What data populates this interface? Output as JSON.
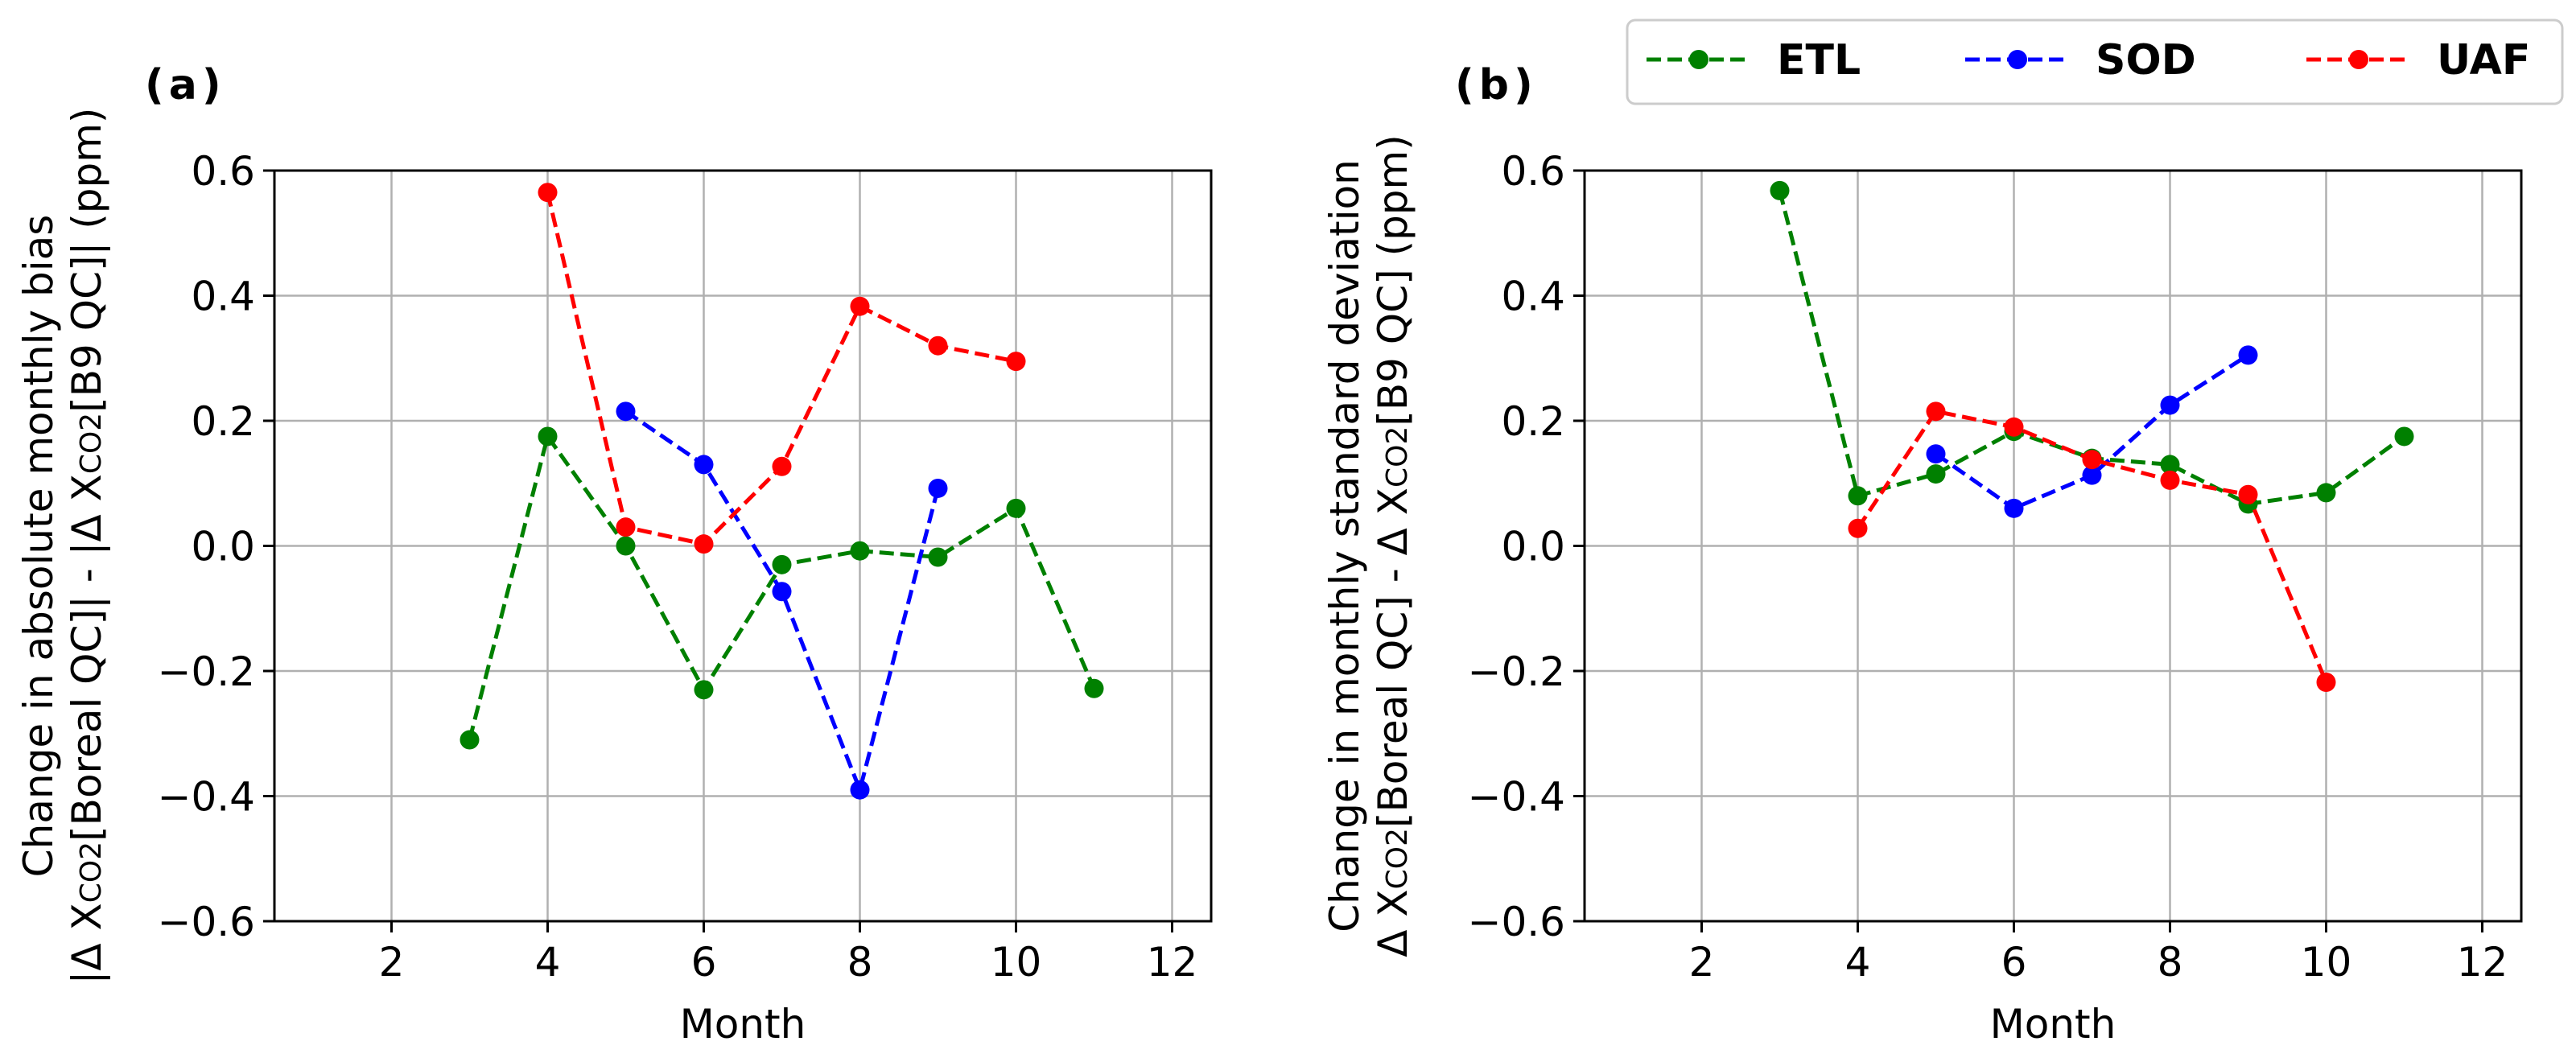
{
  "chart_data": [
    {
      "type": "line",
      "panel_label": "(a)",
      "xlabel": "Month",
      "ylabel_line1": "Change in absolute monthly bias",
      "ylabel_line2": {
        "a": "|Δ X",
        "b": "CO2",
        "c": "[Boreal QC]| - |Δ X",
        "d": "CO2",
        "e": "[B9 QC]| (ppm)"
      },
      "xlim": [
        0.5,
        12.5
      ],
      "ylim": [
        -0.6,
        0.6
      ],
      "xticks": [
        2,
        4,
        6,
        8,
        10,
        12
      ],
      "yticks": [
        -0.6,
        -0.4,
        -0.2,
        0.0,
        0.2,
        0.4,
        0.6
      ],
      "ytick_labels": [
        "−0.6",
        "−0.4",
        "−0.2",
        "0.0",
        "0.2",
        "0.4",
        "0.6"
      ],
      "grid": true,
      "series": [
        {
          "name": "ETL",
          "color": "#008000",
          "x": [
            3,
            4,
            5,
            6,
            7,
            8,
            9,
            10,
            11
          ],
          "y": [
            -0.31,
            0.175,
            0.0,
            -0.23,
            -0.03,
            -0.008,
            -0.018,
            0.06,
            -0.228
          ]
        },
        {
          "name": "SOD",
          "color": "#0000ff",
          "x": [
            5,
            6,
            7,
            8,
            9
          ],
          "y": [
            0.215,
            0.13,
            -0.073,
            -0.39,
            0.092
          ]
        },
        {
          "name": "UAF",
          "color": "#ff0000",
          "x": [
            4,
            5,
            6,
            7,
            8,
            9,
            10
          ],
          "y": [
            0.565,
            0.03,
            0.003,
            0.127,
            0.383,
            0.32,
            0.295
          ]
        }
      ]
    },
    {
      "type": "line",
      "panel_label": "(b)",
      "xlabel": "Month",
      "ylabel_line1": "Change in monthly standard deviation",
      "ylabel_line2": {
        "a": "Δ X",
        "b": "CO2",
        "c": "[Boreal QC] - Δ X",
        "d": "CO2",
        "e": "[B9 QC] (ppm)"
      },
      "xlim": [
        0.5,
        12.5
      ],
      "ylim": [
        -0.6,
        0.6
      ],
      "xticks": [
        2,
        4,
        6,
        8,
        10,
        12
      ],
      "yticks": [
        -0.6,
        -0.4,
        -0.2,
        0.0,
        0.2,
        0.4,
        0.6
      ],
      "ytick_labels": [
        "−0.6",
        "−0.4",
        "−0.2",
        "0.0",
        "0.2",
        "0.4",
        "0.6"
      ],
      "grid": true,
      "series": [
        {
          "name": "ETL",
          "color": "#008000",
          "x": [
            3,
            4,
            5,
            6,
            7,
            8,
            9,
            10,
            11
          ],
          "y": [
            0.568,
            0.08,
            0.115,
            0.183,
            0.14,
            0.13,
            0.067,
            0.085,
            0.175
          ]
        },
        {
          "name": "SOD",
          "color": "#0000ff",
          "x": [
            5,
            6,
            7,
            8,
            9
          ],
          "y": [
            0.147,
            0.06,
            0.113,
            0.225,
            0.305
          ]
        },
        {
          "name": "UAF",
          "color": "#ff0000",
          "x": [
            4,
            5,
            6,
            7,
            8,
            9,
            10
          ],
          "y": [
            0.028,
            0.215,
            0.19,
            0.138,
            0.105,
            0.082,
            -0.218
          ]
        }
      ]
    }
  ],
  "legend": {
    "placement": "top-right",
    "entries": [
      {
        "name": "ETL",
        "color": "#008000"
      },
      {
        "name": "SOD",
        "color": "#0000ff"
      },
      {
        "name": "UAF",
        "color": "#ff0000"
      }
    ]
  }
}
